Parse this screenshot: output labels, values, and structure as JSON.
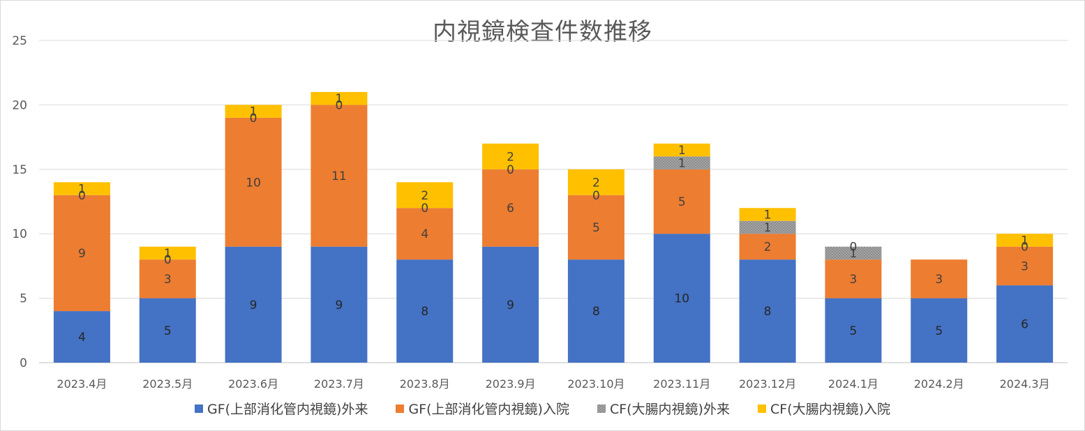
{
  "chart_data": {
    "type": "bar",
    "stacked": true,
    "title": "内視鏡検査件数推移",
    "categories": [
      "2023.4月",
      "2023.5月",
      "2023.6月",
      "2023.7月",
      "2023.8月",
      "2023.9月",
      "2023.10月",
      "2023.11月",
      "2023.12月",
      "2024.1月",
      "2024.2月",
      "2024.3月"
    ],
    "series": [
      {
        "name": "GF(上部消化管内視鏡)外来",
        "color": "#4472c4",
        "pattern": "solid",
        "label_color": "#262626",
        "values": [
          4,
          5,
          9,
          9,
          8,
          9,
          8,
          10,
          8,
          5,
          5,
          6
        ]
      },
      {
        "name": "GF(上部消化管内視鏡)入院",
        "color": "#ed7d31",
        "pattern": "solid",
        "label_color": "#404040",
        "values": [
          9,
          3,
          10,
          11,
          4,
          6,
          5,
          5,
          2,
          3,
          3,
          3
        ]
      },
      {
        "name": "CF(大腸内視鏡)外来",
        "color": "#a5a5a5",
        "pattern": "dotted",
        "label_color": "#404040",
        "values": [
          0,
          0,
          0,
          0,
          0,
          0,
          0,
          1,
          1,
          1,
          null,
          0
        ]
      },
      {
        "name": "CF(大腸内視鏡)入院",
        "color": "#ffc000",
        "pattern": "solid",
        "label_color": "#404040",
        "values": [
          1,
          1,
          1,
          1,
          2,
          2,
          2,
          1,
          1,
          0,
          null,
          1
        ]
      }
    ],
    "xlabel": "",
    "ylabel": "",
    "ylim": [
      0,
      25
    ],
    "yticks": [
      0,
      5,
      10,
      15,
      20,
      25
    ],
    "grid": true,
    "legend_position": "bottom"
  }
}
